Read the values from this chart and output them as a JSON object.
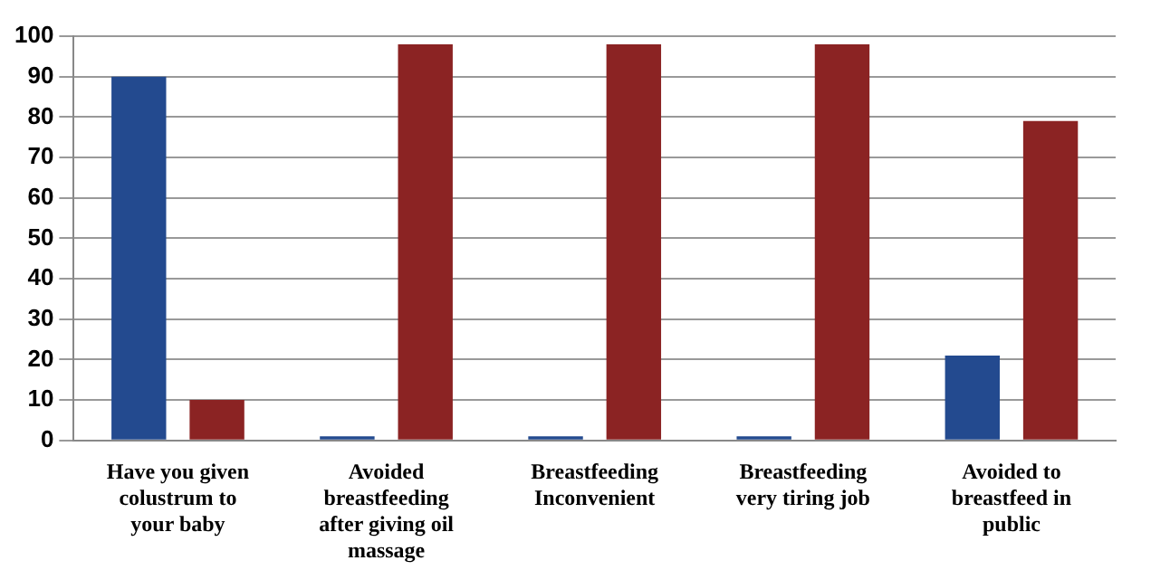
{
  "chart_data": {
    "type": "bar",
    "categories": [
      "Have you given colustrum to your baby",
      "Avoided breastfeeding after giving oil massage",
      "Breastfeeding Inconvenient",
      "Breastfeeding very tiring job",
      "Avoided to breastfeed in public"
    ],
    "series": [
      {
        "color": "#234a8f",
        "values": [
          90,
          1,
          1,
          1,
          21
        ]
      },
      {
        "color": "#8b2323",
        "values": [
          10,
          98,
          98,
          98,
          79
        ]
      }
    ],
    "ylim": [
      0,
      100
    ],
    "yticks": [
      0,
      10,
      20,
      30,
      40,
      50,
      60,
      70,
      80,
      90,
      100
    ],
    "grid": "y",
    "legend": false
  }
}
